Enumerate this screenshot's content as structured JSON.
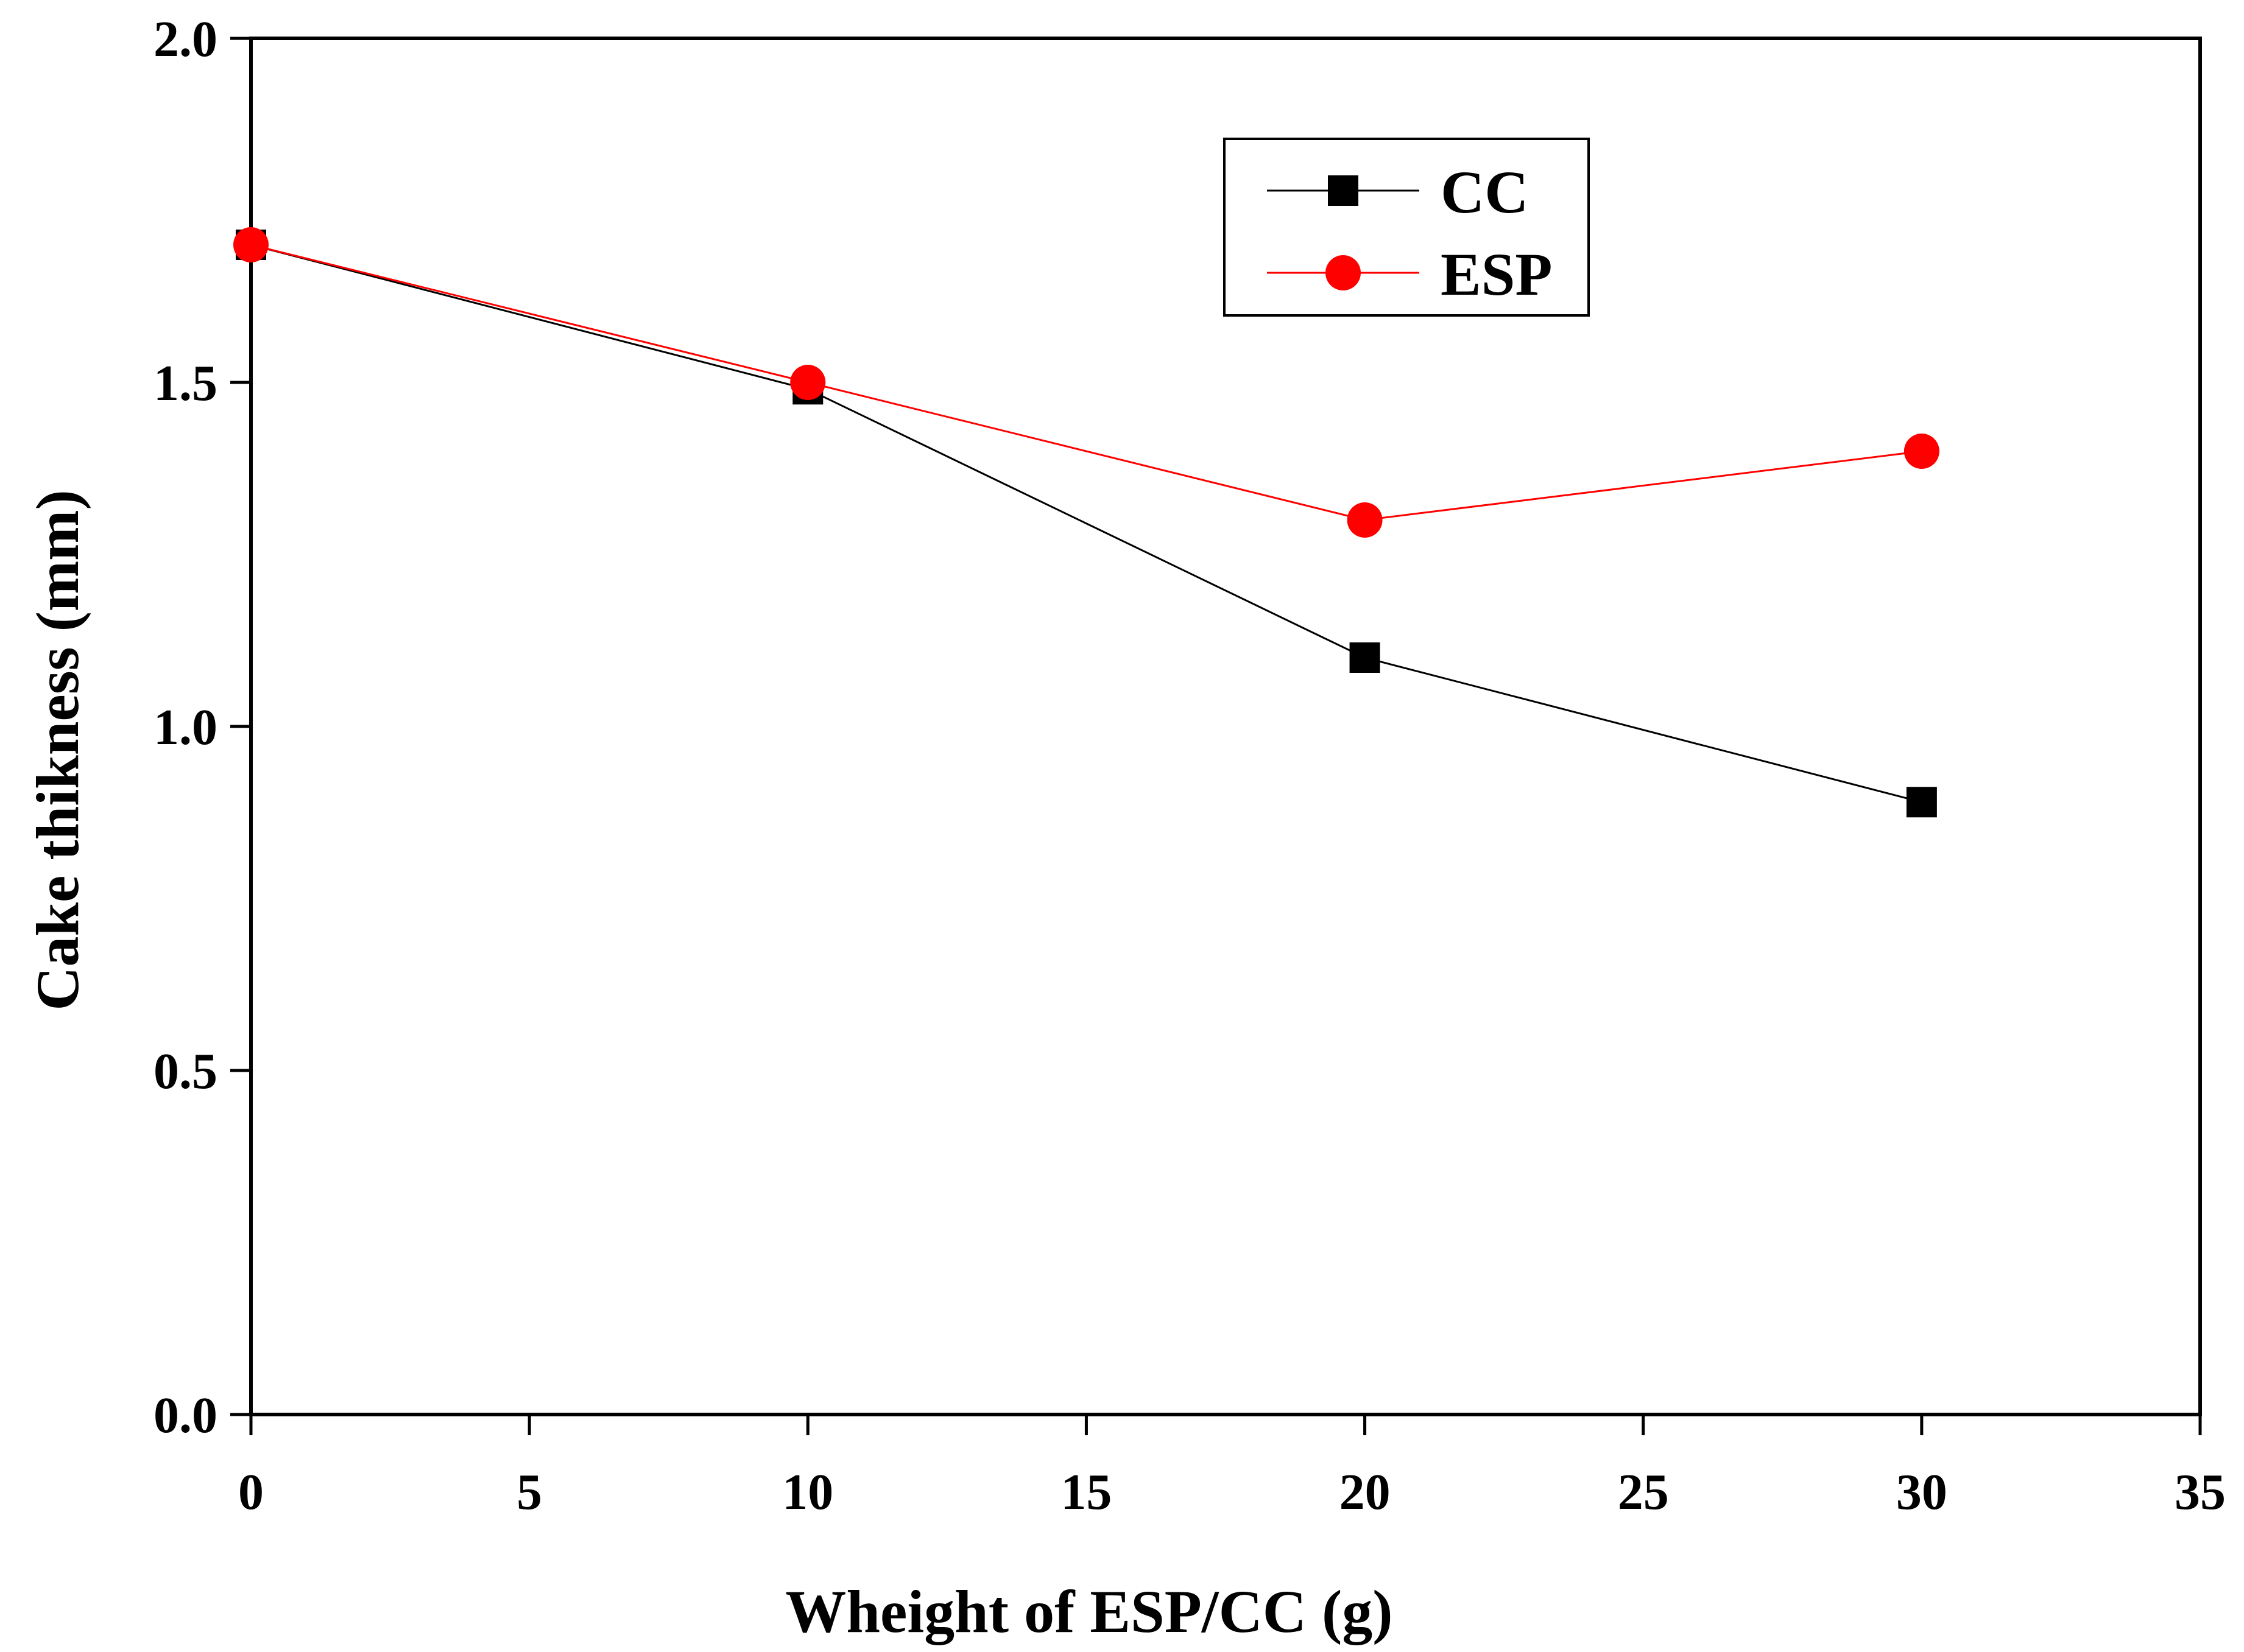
{
  "chart_data": {
    "type": "line",
    "title": "",
    "xlabel": "Wheight of ESP/CC (g)",
    "ylabel": "Cake thikness (mm)",
    "xlim": [
      0,
      35
    ],
    "ylim": [
      0,
      2.0
    ],
    "xticks": [
      0,
      5,
      10,
      15,
      20,
      25,
      30,
      35
    ],
    "yticks": [
      0.0,
      0.5,
      1.0,
      1.5,
      2.0
    ],
    "xtick_labels": [
      "0",
      "5",
      "10",
      "15",
      "20",
      "25",
      "30",
      "35"
    ],
    "ytick_labels": [
      "0.0",
      "0.5",
      "1.0",
      "1.5",
      "2.0"
    ],
    "grid": false,
    "legend_position": "top-right",
    "series": [
      {
        "name": "CC",
        "marker": "square",
        "color": "#000000",
        "x": [
          0,
          10,
          20,
          30
        ],
        "y": [
          1.7,
          1.49,
          1.1,
          0.89
        ]
      },
      {
        "name": "ESP",
        "marker": "circle",
        "color": "#ff0000",
        "x": [
          0,
          10,
          20,
          30
        ],
        "y": [
          1.7,
          1.5,
          1.3,
          1.4
        ]
      }
    ]
  }
}
